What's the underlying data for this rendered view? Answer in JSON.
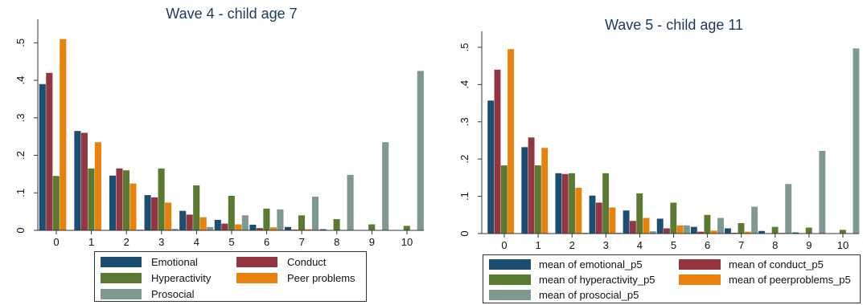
{
  "chart_data": [
    {
      "type": "bar",
      "title": "Wave 4 - child age 7",
      "xlabel": "",
      "ylabel": "",
      "categories": [
        "0",
        "1",
        "2",
        "3",
        "4",
        "5",
        "6",
        "7",
        "8",
        "9",
        "10"
      ],
      "ylim": [
        0,
        0.55
      ],
      "yticks": [
        0,
        0.1,
        0.2,
        0.3,
        0.4,
        0.5
      ],
      "ytick_labels": [
        "0",
        ".1",
        ".2",
        ".3",
        ".4",
        ".5"
      ],
      "grid": false,
      "legend_position": "bottom",
      "series": [
        {
          "name": "Emotional",
          "color": "#1b4f72",
          "values": [
            0.39,
            0.265,
            0.146,
            0.094,
            0.052,
            0.028,
            0.015,
            0.009,
            0.003,
            0.001,
            0.0
          ]
        },
        {
          "name": "Conduct",
          "color": "#943641",
          "values": [
            0.42,
            0.26,
            0.165,
            0.088,
            0.042,
            0.018,
            0.006,
            0.002,
            0.001,
            0.0,
            0.0
          ]
        },
        {
          "name": "Hyperactivity",
          "color": "#5a7a32",
          "values": [
            0.145,
            0.165,
            0.16,
            0.165,
            0.12,
            0.092,
            0.058,
            0.04,
            0.03,
            0.016,
            0.012
          ]
        },
        {
          "name": "Peer problems",
          "color": "#e8820c",
          "values": [
            0.51,
            0.235,
            0.125,
            0.074,
            0.035,
            0.016,
            0.008,
            0.003,
            0.001,
            0.0,
            0.0
          ]
        },
        {
          "name": "Prosocial",
          "color": "#7f9890",
          "values": [
            0.001,
            0.001,
            0.002,
            0.004,
            0.009,
            0.04,
            0.056,
            0.09,
            0.148,
            0.235,
            0.425
          ]
        }
      ]
    },
    {
      "type": "bar",
      "title": "Wave 5 - child age 11",
      "xlabel": "",
      "ylabel": "",
      "categories": [
        "0",
        "1",
        "2",
        "3",
        "4",
        "5",
        "6",
        "7",
        "8",
        "9",
        "10"
      ],
      "ylim": [
        0,
        0.53
      ],
      "yticks": [
        0,
        0.1,
        0.2,
        0.3,
        0.4,
        0.5
      ],
      "ytick_labels": [
        "0",
        ".1",
        ".2",
        ".3",
        ".4",
        ".5"
      ],
      "grid": false,
      "legend_position": "bottom",
      "series": [
        {
          "name": "mean of emotional_p5",
          "color": "#1b4f72",
          "values": [
            0.357,
            0.232,
            0.162,
            0.102,
            0.062,
            0.04,
            0.018,
            0.014,
            0.007,
            0.003,
            0.0
          ]
        },
        {
          "name": "mean of conduct_p5",
          "color": "#943641",
          "values": [
            0.44,
            0.258,
            0.16,
            0.083,
            0.034,
            0.014,
            0.005,
            0.002,
            0.001,
            0.0,
            0.0
          ]
        },
        {
          "name": "mean of hyperactivity_p5",
          "color": "#5a7a32",
          "values": [
            0.183,
            0.183,
            0.162,
            0.162,
            0.108,
            0.083,
            0.05,
            0.028,
            0.018,
            0.016,
            0.01
          ]
        },
        {
          "name": "mean of peerproblems_p5",
          "color": "#e8820c",
          "values": [
            0.495,
            0.23,
            0.123,
            0.07,
            0.042,
            0.022,
            0.008,
            0.005,
            0.002,
            0.001,
            0.0
          ]
        },
        {
          "name": "mean of prosocial_p5",
          "color": "#7f9890",
          "values": [
            0.001,
            0.001,
            0.002,
            0.002,
            0.006,
            0.022,
            0.042,
            0.072,
            0.133,
            0.222,
            0.497
          ]
        }
      ]
    }
  ]
}
